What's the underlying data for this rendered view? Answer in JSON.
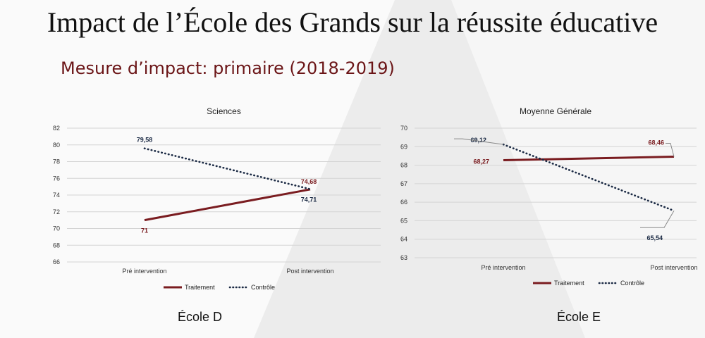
{
  "slide": {
    "title": "Impact de l’École des Grands sur la réussite éducative",
    "subtitle": "Mesure d’impact: primaire (2018-2019)"
  },
  "colors": {
    "treatment": "#7a1c20",
    "control": "#1b2a44",
    "grid": "#d4d4d4",
    "axis_text": "#333333"
  },
  "chart_data": [
    {
      "type": "line",
      "title": "Sciences",
      "caption": "École D",
      "categories": [
        "Pré intervention",
        "Post intervention"
      ],
      "series": [
        {
          "name": "Traitement",
          "values": [
            71,
            74.68
          ],
          "labels": [
            "71",
            "74,68"
          ],
          "style": "solid"
        },
        {
          "name": "Contrôle",
          "values": [
            79.58,
            74.71
          ],
          "labels": [
            "79,58",
            "74,71"
          ],
          "style": "dotted"
        }
      ],
      "yticks": [
        "66",
        "68",
        "70",
        "72",
        "74",
        "76",
        "78",
        "80",
        "82"
      ],
      "ylim": [
        66,
        82
      ],
      "grid": true,
      "legend_position": "bottom"
    },
    {
      "type": "line",
      "title": "Moyenne Générale",
      "caption": "École E",
      "categories": [
        "Pré intervention",
        "Post intervention"
      ],
      "series": [
        {
          "name": "Traitement",
          "values": [
            68.27,
            68.46
          ],
          "labels": [
            "68,27",
            "68,46"
          ],
          "style": "solid"
        },
        {
          "name": "Contrôle",
          "values": [
            69.12,
            65.54
          ],
          "labels": [
            "69,12",
            "65,54"
          ],
          "style": "dotted"
        }
      ],
      "yticks": [
        "63",
        "64",
        "65",
        "66",
        "67",
        "68",
        "69",
        "70"
      ],
      "ylim": [
        63,
        70
      ],
      "grid": true,
      "legend_position": "bottom"
    }
  ]
}
